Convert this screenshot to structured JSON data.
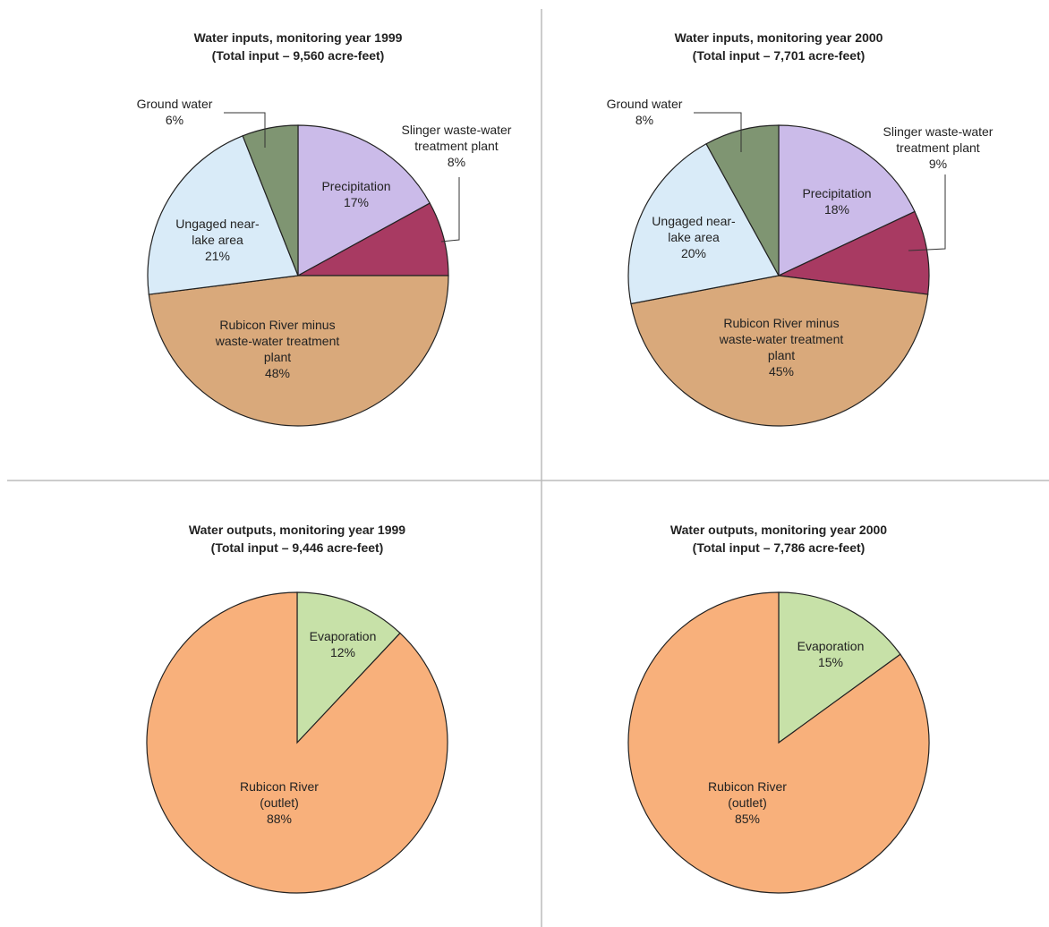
{
  "chart_data": [
    {
      "type": "pie",
      "title": "Water inputs, monitoring year 1999",
      "subtitle": "(Total input – 9,560 acre-feet)",
      "categories": [
        "Precipitation",
        "Slinger waste-water treatment plant",
        "Rubicon River minus waste-water treatment plant",
        "Ungaged near-lake area",
        "Ground water"
      ],
      "values": [
        17,
        8,
        48,
        21,
        6
      ],
      "value_labels": [
        "17%",
        "8%",
        "48%",
        "21%",
        "6%"
      ],
      "colors": [
        "#cbbbe9",
        "#a83a62",
        "#d9a97b",
        "#d9ebf8",
        "#7f9572"
      ]
    },
    {
      "type": "pie",
      "title": "Water inputs, monitoring year 2000",
      "subtitle": "(Total input – 7,701 acre-feet)",
      "categories": [
        "Precipitation",
        "Slinger waste-water treatment plant",
        "Rubicon River minus waste-water treatment plant",
        "Ungaged near-lake area",
        "Ground water"
      ],
      "values": [
        18,
        9,
        45,
        20,
        8
      ],
      "value_labels": [
        "18%",
        "9%",
        "45%",
        "20%",
        "8%"
      ],
      "colors": [
        "#cbbbe9",
        "#a83a62",
        "#d9a97b",
        "#d9ebf8",
        "#7f9572"
      ]
    },
    {
      "type": "pie",
      "title": "Water outputs, monitoring year 1999",
      "subtitle": "(Total input – 9,446 acre-feet)",
      "categories": [
        "Evaporation",
        "Rubicon River (outlet)"
      ],
      "values": [
        12,
        88
      ],
      "value_labels": [
        "12%",
        "88%"
      ],
      "colors": [
        "#c7e1a8",
        "#f8b07b"
      ]
    },
    {
      "type": "pie",
      "title": "Water outputs, monitoring year 2000",
      "subtitle": "(Total input – 7,786 acre-feet)",
      "categories": [
        "Evaporation",
        "Rubicon River (outlet)"
      ],
      "values": [
        15,
        85
      ],
      "value_labels": [
        "15%",
        "85%"
      ],
      "colors": [
        "#c7e1a8",
        "#f8b07b"
      ]
    }
  ]
}
